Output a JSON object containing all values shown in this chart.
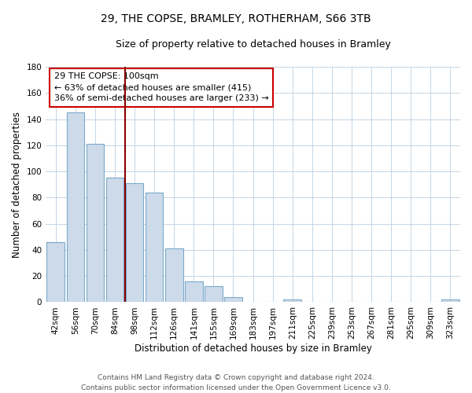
{
  "title": "29, THE COPSE, BRAMLEY, ROTHERHAM, S66 3TB",
  "subtitle": "Size of property relative to detached houses in Bramley",
  "xlabel": "Distribution of detached houses by size in Bramley",
  "ylabel": "Number of detached properties",
  "bar_labels": [
    "42sqm",
    "56sqm",
    "70sqm",
    "84sqm",
    "98sqm",
    "112sqm",
    "126sqm",
    "141sqm",
    "155sqm",
    "169sqm",
    "183sqm",
    "197sqm",
    "211sqm",
    "225sqm",
    "239sqm",
    "253sqm",
    "267sqm",
    "281sqm",
    "295sqm",
    "309sqm",
    "323sqm"
  ],
  "bar_values": [
    46,
    145,
    121,
    95,
    91,
    84,
    41,
    16,
    12,
    4,
    0,
    0,
    2,
    0,
    0,
    0,
    0,
    0,
    0,
    0,
    2
  ],
  "bar_color": "#ccdaea",
  "bar_edge_color": "#7aaaca",
  "ylim": [
    0,
    180
  ],
  "yticks": [
    0,
    20,
    40,
    60,
    80,
    100,
    120,
    140,
    160,
    180
  ],
  "vline_x": 3.5,
  "vline_color": "#8b0000",
  "annotation_title": "29 THE COPSE: 100sqm",
  "annotation_line1": "← 63% of detached houses are smaller (415)",
  "annotation_line2": "36% of semi-detached houses are larger (233) →",
  "footer_line1": "Contains HM Land Registry data © Crown copyright and database right 2024.",
  "footer_line2": "Contains public sector information licensed under the Open Government Licence v3.0.",
  "title_fontsize": 10,
  "subtitle_fontsize": 9,
  "axis_label_fontsize": 8.5,
  "tick_fontsize": 7.5,
  "annotation_fontsize": 8,
  "footer_fontsize": 6.5
}
